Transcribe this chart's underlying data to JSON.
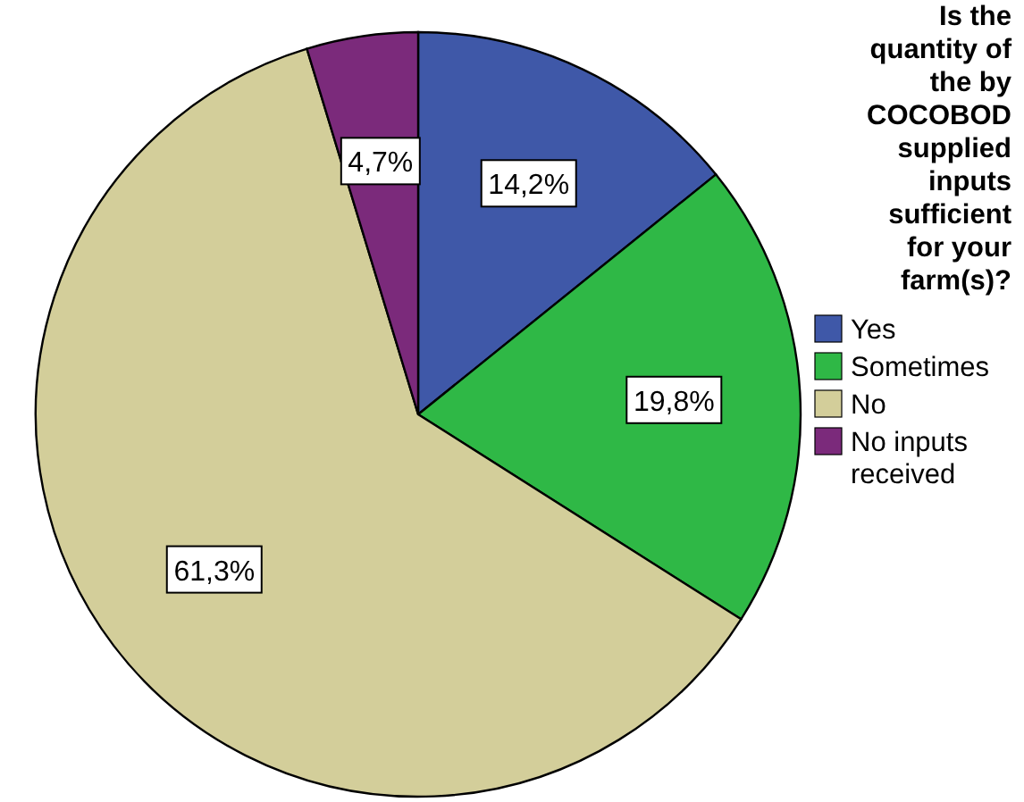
{
  "chart_data": {
    "type": "pie",
    "legend_title": "Is the quantity of the by COCOBOD supplied inputs sufficient for your farm(s)?",
    "categories": [
      "Yes",
      "Sometimes",
      "No",
      "No inputs received"
    ],
    "values": [
      14.2,
      19.8,
      61.3,
      4.7
    ],
    "value_labels": [
      "14,2%",
      "19,8%",
      "61,3%",
      "4,7%"
    ],
    "colors": [
      "#3f58a8",
      "#2fb846",
      "#d3ce9a",
      "#7b2a7b"
    ],
    "legend": "right"
  }
}
